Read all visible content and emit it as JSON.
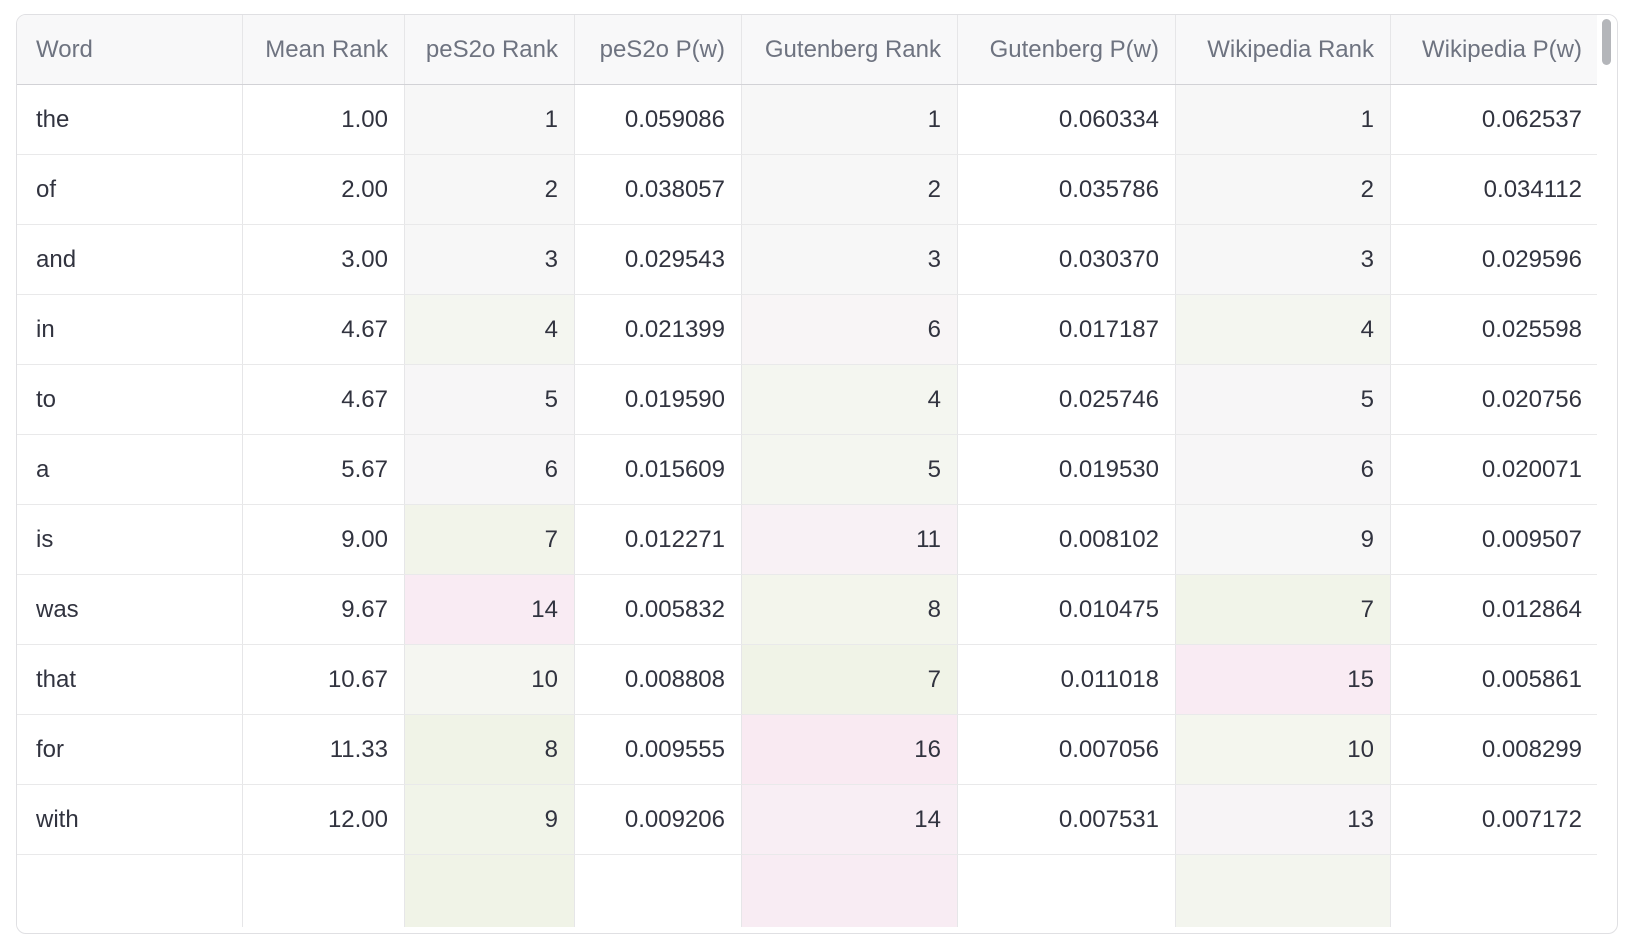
{
  "colors": {
    "rank_neutral": "#f7f7f7",
    "tint_green_strong": "#f0f3e7",
    "tint_green": "#f1f4e9",
    "tint_green_faint": "#f4f6f0",
    "tint_pink_strong": "#f9ebf3",
    "tint_pink": "#f8eef4",
    "tint_pink_faint": "#f8f5f6",
    "header_bg": "#f8f8f9",
    "header_text": "#6e7380",
    "cell_text": "#31333f",
    "scrollbar_thumb": "#b4b6ba"
  },
  "chart_data": {
    "type": "table",
    "columns": [
      "Word",
      "Mean Rank",
      "peS2o Rank",
      "peS2o P(w)",
      "Gutenberg Rank",
      "Gutenberg P(w)",
      "Wikipedia Rank",
      "Wikipedia P(w)"
    ],
    "rows": [
      [
        "the",
        "1.00",
        "1",
        "0.059086",
        "1",
        "0.060334",
        "1",
        "0.062537"
      ],
      [
        "of",
        "2.00",
        "2",
        "0.038057",
        "2",
        "0.035786",
        "2",
        "0.034112"
      ],
      [
        "and",
        "3.00",
        "3",
        "0.029543",
        "3",
        "0.030370",
        "3",
        "0.029596"
      ],
      [
        "in",
        "4.67",
        "4",
        "0.021399",
        "6",
        "0.017187",
        "4",
        "0.025598"
      ],
      [
        "to",
        "4.67",
        "5",
        "0.019590",
        "4",
        "0.025746",
        "5",
        "0.020756"
      ],
      [
        "a",
        "5.67",
        "6",
        "0.015609",
        "5",
        "0.019530",
        "6",
        "0.020071"
      ],
      [
        "is",
        "9.00",
        "7",
        "0.012271",
        "11",
        "0.008102",
        "9",
        "0.009507"
      ],
      [
        "was",
        "9.67",
        "14",
        "0.005832",
        "8",
        "0.010475",
        "7",
        "0.012864"
      ],
      [
        "that",
        "10.67",
        "10",
        "0.008808",
        "7",
        "0.011018",
        "15",
        "0.005861"
      ],
      [
        "for",
        "11.33",
        "8",
        "0.009555",
        "16",
        "0.007056",
        "10",
        "0.008299"
      ],
      [
        "with",
        "12.00",
        "9",
        "0.009206",
        "14",
        "0.007531",
        "13",
        "0.007172"
      ]
    ]
  },
  "table": {
    "columns": [
      {
        "key": "word",
        "label": "Word",
        "align": "left"
      },
      {
        "key": "mean-rank",
        "label": "Mean Rank",
        "align": "right"
      },
      {
        "key": "pes2o-rank",
        "label": "peS2o Rank",
        "align": "right"
      },
      {
        "key": "pes2o-pw",
        "label": "peS2o P(w)",
        "align": "right"
      },
      {
        "key": "gutenberg-rank",
        "label": "Gutenberg Rank",
        "align": "right"
      },
      {
        "key": "gutenberg-pw",
        "label": "Gutenberg P(w)",
        "align": "right"
      },
      {
        "key": "wikipedia-rank",
        "label": "Wikipedia Rank",
        "align": "right"
      },
      {
        "key": "wikipedia-pw",
        "label": "Wikipedia P(w)",
        "align": "right"
      }
    ],
    "rows": [
      {
        "cells": [
          "the",
          "1.00",
          "1",
          "0.059086",
          "1",
          "0.060334",
          "1",
          "0.062537"
        ],
        "rank_bg": [
          "#f7f7f7",
          "#f7f7f7",
          "#f7f7f7"
        ]
      },
      {
        "cells": [
          "of",
          "2.00",
          "2",
          "0.038057",
          "2",
          "0.035786",
          "2",
          "0.034112"
        ],
        "rank_bg": [
          "#f7f7f7",
          "#f7f7f7",
          "#f7f7f7"
        ]
      },
      {
        "cells": [
          "and",
          "3.00",
          "3",
          "0.029543",
          "3",
          "0.030370",
          "3",
          "0.029596"
        ],
        "rank_bg": [
          "#f7f7f7",
          "#f7f7f7",
          "#f7f7f7"
        ]
      },
      {
        "cells": [
          "in",
          "4.67",
          "4",
          "0.021399",
          "6",
          "0.017187",
          "4",
          "0.025598"
        ],
        "rank_bg": [
          "#f4f6f0",
          "#f8f5f6",
          "#f4f6f0"
        ]
      },
      {
        "cells": [
          "to",
          "4.67",
          "5",
          "0.019590",
          "4",
          "0.025746",
          "5",
          "0.020756"
        ],
        "rank_bg": [
          "#f7f6f7",
          "#f4f6f0",
          "#f7f6f7"
        ]
      },
      {
        "cells": [
          "a",
          "5.67",
          "6",
          "0.015609",
          "5",
          "0.019530",
          "6",
          "0.020071"
        ],
        "rank_bg": [
          "#f7f6f7",
          "#f4f6f0",
          "#f7f6f7"
        ]
      },
      {
        "cells": [
          "is",
          "9.00",
          "7",
          "0.012271",
          "11",
          "0.008102",
          "9",
          "0.009507"
        ],
        "rank_bg": [
          "#f2f4ea",
          "#f8f1f5",
          "#f7f7f7"
        ]
      },
      {
        "cells": [
          "was",
          "9.67",
          "14",
          "0.005832",
          "8",
          "0.010475",
          "7",
          "0.012864"
        ],
        "rank_bg": [
          "#f9ebf3",
          "#f3f5ec",
          "#f1f4e9"
        ]
      },
      {
        "cells": [
          "that",
          "10.67",
          "10",
          "0.008808",
          "7",
          "0.011018",
          "15",
          "0.005861"
        ],
        "rank_bg": [
          "#f5f6f1",
          "#f0f3e7",
          "#f9ebf3"
        ]
      },
      {
        "cells": [
          "for",
          "11.33",
          "8",
          "0.009555",
          "16",
          "0.007056",
          "10",
          "0.008299"
        ],
        "rank_bg": [
          "#f0f3e7",
          "#f9eaf2",
          "#f4f6ee"
        ]
      },
      {
        "cells": [
          "with",
          "12.00",
          "9",
          "0.009206",
          "14",
          "0.007531",
          "13",
          "0.007172"
        ],
        "rank_bg": [
          "#f1f4e9",
          "#f8eef4",
          "#f7f4f6"
        ]
      }
    ],
    "partial_row": {
      "cells": [
        "",
        "",
        "",
        "",
        "",
        "",
        "",
        ""
      ],
      "rank_bg": [
        "#f0f3e7",
        "#f8ecf3",
        "#f3f5ee"
      ]
    }
  }
}
